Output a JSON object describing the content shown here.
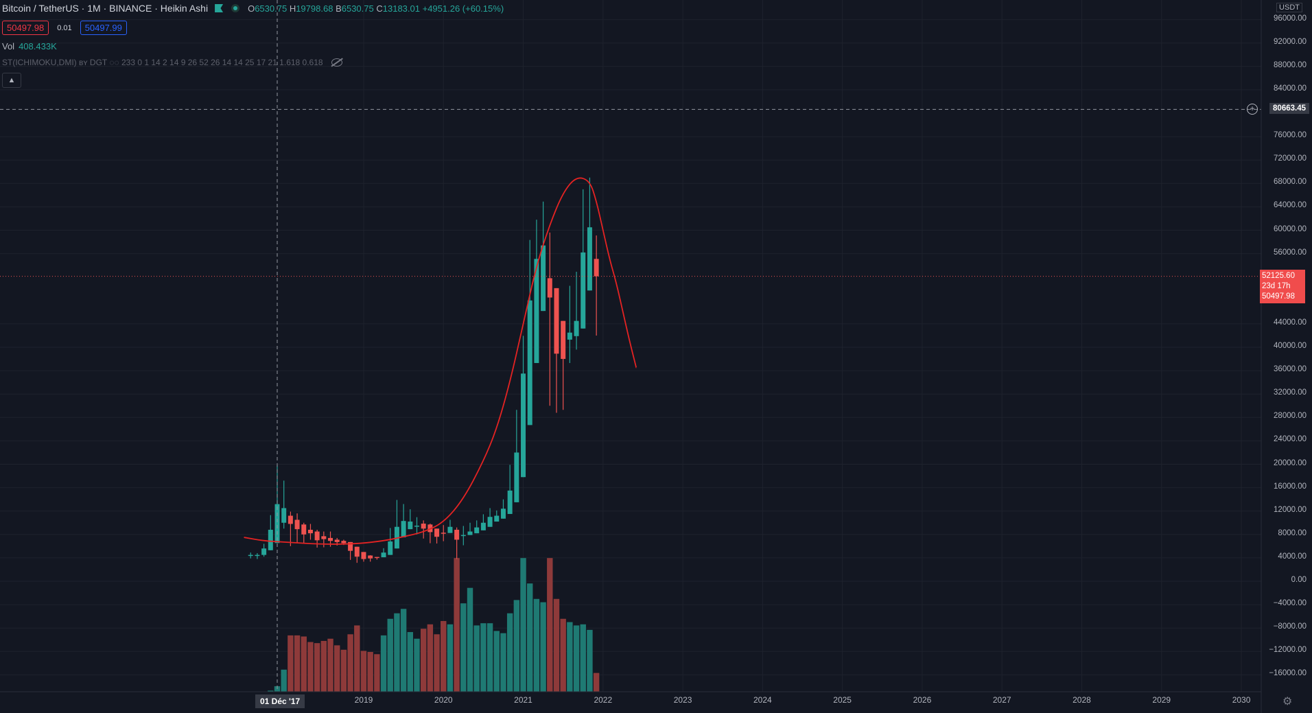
{
  "legend": {
    "title": "Bitcoin / TetherUS · 1M · BINANCE · Heikin Ashi",
    "open_label": "O",
    "open": "6530.75",
    "high_label": "H",
    "high": "19798.68",
    "low_label": "B",
    "low": "6530.75",
    "close_label": "C",
    "close": "13183.01",
    "change": "+4951.26 (+60.15%)",
    "sell_price": "50497.98",
    "spread": "0.01",
    "buy_price": "50497.99",
    "vol_label": "Vol",
    "vol_value": "408.433K",
    "indicator_label": "ST(ICHIMOKU,DMI) ʙʏ DGT ◌◌ 233 0 1 14 2 14 9 26 52 26 14 14 25 17 21 1.618 0.618",
    "collapse_icon": "chevron-up-icon"
  },
  "price_axis": {
    "currency": "USDT",
    "ticks": [
      "96000.00",
      "92000.00",
      "88000.00",
      "84000.00",
      "76000.00",
      "72000.00",
      "68000.00",
      "64000.00",
      "60000.00",
      "56000.00",
      "44000.00",
      "40000.00",
      "36000.00",
      "32000.00",
      "28000.00",
      "24000.00",
      "20000.00",
      "16000.00",
      "12000.00",
      "8000.00",
      "4000.00",
      "0.00",
      "−4000.00",
      "−8000.00",
      "−12000.00",
      "−16000.00"
    ],
    "crosshair_price": "80663.45",
    "last_price": "52125.60",
    "countdown": "23d 17h",
    "bid_price": "50497.98"
  },
  "time_axis": {
    "ticks": [
      "2019",
      "2020",
      "2021",
      "2022",
      "2023",
      "2024",
      "2025",
      "2026",
      "2027",
      "2028",
      "2029",
      "2030"
    ],
    "crosshair_date": "01 Déc '17"
  },
  "colors": {
    "background": "#131722",
    "up": "#26a69a",
    "down": "#ef5350",
    "vol_up": "#1f7a73",
    "vol_down": "#8e3a3a",
    "projection": "#e52323",
    "grid": "#1e222d"
  },
  "chart_data": {
    "type": "candlestick",
    "title": "Bitcoin / TetherUS · 1M · BINANCE · Heikin Ashi",
    "ylim": [
      -18000,
      100000
    ],
    "candles": [
      {
        "t": "2017-08",
        "o": 4400,
        "h": 4900,
        "l": 3900,
        "c": 4500,
        "v": 0
      },
      {
        "t": "2017-09",
        "o": 4450,
        "h": 4800,
        "l": 3800,
        "c": 4500,
        "v": 0
      },
      {
        "t": "2017-10",
        "o": 4500,
        "h": 6400,
        "l": 4200,
        "c": 5600,
        "v": 0
      },
      {
        "t": "2017-11",
        "o": 5300,
        "h": 11300,
        "l": 5300,
        "c": 8800,
        "v": 1
      },
      {
        "t": "2017-12",
        "o": 6530.75,
        "h": 19798.68,
        "l": 6530.75,
        "c": 13183.01,
        "v": 5
      },
      {
        "t": "2018-01",
        "o": 10000,
        "h": 17200,
        "l": 9000,
        "c": 12500,
        "v": 20
      },
      {
        "t": "2018-02",
        "o": 11200,
        "h": 11900,
        "l": 6000,
        "c": 9800,
        "v": 51
      },
      {
        "t": "2018-03",
        "o": 10500,
        "h": 11600,
        "l": 6600,
        "c": 8900,
        "v": 51
      },
      {
        "t": "2018-04",
        "o": 9700,
        "h": 10000,
        "l": 6500,
        "c": 8000,
        "v": 50
      },
      {
        "t": "2018-05",
        "o": 8800,
        "h": 9800,
        "l": 7100,
        "c": 8200,
        "v": 45
      },
      {
        "t": "2018-06",
        "o": 8500,
        "h": 8800,
        "l": 5750,
        "c": 7000,
        "v": 44
      },
      {
        "t": "2018-07",
        "o": 7700,
        "h": 8500,
        "l": 5800,
        "c": 7200,
        "v": 46
      },
      {
        "t": "2018-08",
        "o": 7400,
        "h": 8500,
        "l": 5900,
        "c": 6900,
        "v": 48
      },
      {
        "t": "2018-09",
        "o": 7100,
        "h": 7400,
        "l": 6100,
        "c": 6700,
        "v": 42
      },
      {
        "t": "2018-10",
        "o": 6900,
        "h": 7100,
        "l": 6200,
        "c": 6500,
        "v": 38
      },
      {
        "t": "2018-11",
        "o": 6700,
        "h": 6700,
        "l": 3650,
        "c": 5200,
        "v": 52
      },
      {
        "t": "2018-12",
        "o": 5900,
        "h": 5900,
        "l": 3150,
        "c": 4200,
        "v": 60
      },
      {
        "t": "2019-01",
        "o": 5000,
        "h": 5000,
        "l": 3350,
        "c": 3800,
        "v": 37
      },
      {
        "t": "2019-02",
        "o": 4400,
        "h": 4450,
        "l": 3350,
        "c": 3900,
        "v": 36
      },
      {
        "t": "2019-03",
        "o": 4150,
        "h": 4150,
        "l": 3700,
        "c": 4050,
        "v": 34
      },
      {
        "t": "2019-04",
        "o": 4100,
        "h": 5650,
        "l": 4100,
        "c": 4900,
        "v": 51
      },
      {
        "t": "2019-05",
        "o": 4500,
        "h": 9100,
        "l": 4500,
        "c": 6800,
        "v": 66
      },
      {
        "t": "2019-06",
        "o": 5600,
        "h": 13900,
        "l": 5600,
        "c": 9300,
        "v": 71
      },
      {
        "t": "2019-07",
        "o": 7500,
        "h": 13200,
        "l": 7500,
        "c": 10300,
        "v": 75
      },
      {
        "t": "2019-08",
        "o": 8900,
        "h": 12300,
        "l": 8900,
        "c": 10200,
        "v": 54
      },
      {
        "t": "2019-09",
        "o": 9500,
        "h": 10950,
        "l": 8000,
        "c": 9500,
        "v": 48
      },
      {
        "t": "2019-10",
        "o": 9850,
        "h": 10400,
        "l": 7300,
        "c": 9000,
        "v": 57
      },
      {
        "t": "2019-11",
        "o": 9700,
        "h": 9850,
        "l": 6500,
        "c": 8400,
        "v": 61
      },
      {
        "t": "2019-12",
        "o": 9000,
        "h": 9000,
        "l": 6450,
        "c": 7600,
        "v": 52
      },
      {
        "t": "2020-01",
        "o": 8300,
        "h": 9600,
        "l": 6850,
        "c": 8200,
        "v": 64
      },
      {
        "t": "2020-02",
        "o": 8250,
        "h": 10500,
        "l": 8250,
        "c": 9300,
        "v": 61
      },
      {
        "t": "2020-03",
        "o": 8800,
        "h": 9200,
        "l": 3800,
        "c": 7100,
        "v": 121
      },
      {
        "t": "2020-04",
        "o": 7900,
        "h": 9450,
        "l": 6150,
        "c": 7900,
        "v": 80
      },
      {
        "t": "2020-05",
        "o": 7900,
        "h": 10000,
        "l": 7900,
        "c": 8500,
        "v": 94
      },
      {
        "t": "2020-06",
        "o": 8200,
        "h": 10400,
        "l": 8200,
        "c": 9200,
        "v": 60
      },
      {
        "t": "2020-07",
        "o": 8700,
        "h": 11450,
        "l": 8700,
        "c": 10000,
        "v": 62
      },
      {
        "t": "2020-08",
        "o": 9300,
        "h": 12500,
        "l": 9300,
        "c": 11000,
        "v": 62
      },
      {
        "t": "2020-09",
        "o": 10200,
        "h": 12100,
        "l": 10200,
        "c": 11200,
        "v": 55
      },
      {
        "t": "2020-10",
        "o": 10700,
        "h": 14000,
        "l": 10700,
        "c": 12400,
        "v": 53
      },
      {
        "t": "2020-11",
        "o": 11500,
        "h": 19900,
        "l": 11500,
        "c": 15500,
        "v": 71
      },
      {
        "t": "2020-12",
        "o": 13500,
        "h": 29300,
        "l": 13500,
        "c": 22000,
        "v": 83
      },
      {
        "t": "2021-01",
        "o": 17800,
        "h": 41950,
        "l": 17800,
        "c": 35500,
        "v": 121
      },
      {
        "t": "2021-02",
        "o": 26700,
        "h": 58350,
        "l": 26700,
        "c": 48000,
        "v": 98
      },
      {
        "t": "2021-03",
        "o": 37300,
        "h": 61800,
        "l": 37300,
        "c": 55100,
        "v": 84
      },
      {
        "t": "2021-04",
        "o": 46200,
        "h": 64900,
        "l": 46200,
        "c": 57400,
        "v": 81
      },
      {
        "t": "2021-05",
        "o": 51800,
        "h": 59600,
        "l": 30000,
        "c": 48500,
        "v": 121
      },
      {
        "t": "2021-06",
        "o": 50100,
        "h": 50100,
        "l": 28800,
        "c": 38900,
        "v": 84
      },
      {
        "t": "2021-07",
        "o": 44500,
        "h": 44500,
        "l": 29300,
        "c": 38000,
        "v": 66
      },
      {
        "t": "2021-08",
        "o": 41300,
        "h": 50500,
        "l": 37300,
        "c": 42500,
        "v": 63
      },
      {
        "t": "2021-09",
        "o": 41900,
        "h": 52900,
        "l": 39600,
        "c": 44500,
        "v": 60
      },
      {
        "t": "2021-10",
        "o": 43200,
        "h": 67000,
        "l": 43200,
        "c": 56200,
        "v": 61
      },
      {
        "t": "2021-11",
        "o": 49700,
        "h": 69000,
        "l": 49700,
        "c": 60500,
        "v": 56
      },
      {
        "t": "2021-12",
        "o": 55100,
        "h": 59100,
        "l": 42000,
        "c": 52125.6,
        "v": 17
      }
    ],
    "projection_curve": [
      {
        "t": "2017-07",
        "y": 7500
      },
      {
        "t": "2017-10",
        "y": 6900
      },
      {
        "t": "2018-01",
        "y": 6700
      },
      {
        "t": "2018-07",
        "y": 6300
      },
      {
        "t": "2018-12",
        "y": 6400
      },
      {
        "t": "2019-04",
        "y": 6900
      },
      {
        "t": "2019-07",
        "y": 7600
      },
      {
        "t": "2019-10",
        "y": 8400
      },
      {
        "t": "2020-01",
        "y": 10000
      },
      {
        "t": "2020-04",
        "y": 14000
      },
      {
        "t": "2020-07",
        "y": 20500
      },
      {
        "t": "2020-09",
        "y": 26000
      },
      {
        "t": "2020-11",
        "y": 34000
      },
      {
        "t": "2021-01",
        "y": 44000
      },
      {
        "t": "2021-03",
        "y": 54000
      },
      {
        "t": "2021-05",
        "y": 61000
      },
      {
        "t": "2021-07",
        "y": 66500
      },
      {
        "t": "2021-09",
        "y": 69200
      },
      {
        "t": "2021-11",
        "y": 68500
      },
      {
        "t": "2021-12",
        "y": 65000
      },
      {
        "t": "2022-01",
        "y": 60000
      },
      {
        "t": "2022-02",
        "y": 55000
      },
      {
        "t": "2022-03",
        "y": 51000
      },
      {
        "t": "2022-04",
        "y": 46000
      },
      {
        "t": "2022-05",
        "y": 41000
      },
      {
        "t": "2022-06",
        "y": 36500
      }
    ]
  }
}
